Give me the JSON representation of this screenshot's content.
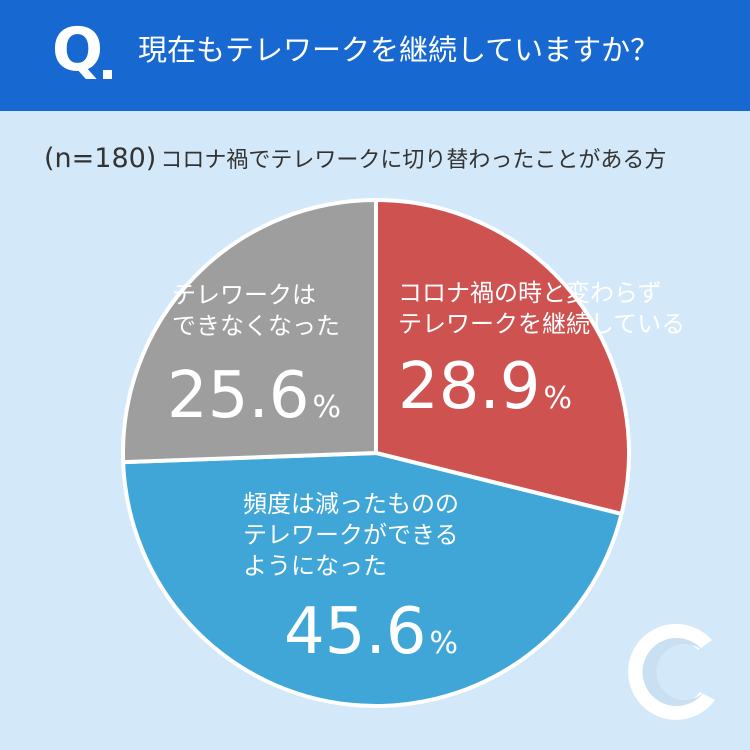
{
  "header": {
    "q_mark": "Q",
    "question": "現在もテレワークを継続していますか？"
  },
  "subtitle": {
    "n": "(n=180)",
    "description": "コロナ禍でテレワークに切り替わったことがある方"
  },
  "chart_data": {
    "type": "pie",
    "title": "現在もテレワークを継続していますか？",
    "n": 180,
    "unit": "%",
    "slices": [
      {
        "label": "コロナ禍の時と変わらず\nテレワークを継続している",
        "value": 28.9,
        "value_text": "28.9",
        "color": "#cd5250"
      },
      {
        "label": "頻度は減ったものの\nテレワークができる\nようになった",
        "value": 45.6,
        "value_text": "45.6",
        "color": "#3fa6d7"
      },
      {
        "label": "テレワークは\nできなくなった",
        "value": 25.6,
        "value_text": "25.6",
        "color": "#9e9e9e"
      }
    ]
  },
  "logo": {
    "icon": "c-crescent-logo",
    "colors": [
      "#ffffff",
      "#c8e0f2"
    ]
  }
}
